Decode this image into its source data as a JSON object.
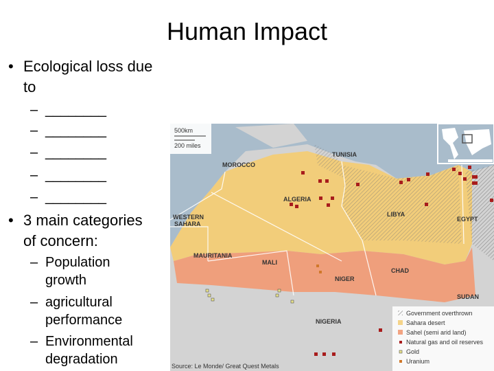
{
  "slide": {
    "title": "Human Impact",
    "bullets": [
      {
        "text_lines": [
          "Ecological loss due",
          "to"
        ],
        "sub": [
          "________",
          "________",
          "________",
          "________",
          "________"
        ]
      },
      {
        "text_lines": [
          "3 main categories",
          "of concern:"
        ],
        "sub": [
          [
            "Population",
            "growth"
          ],
          [
            "agricultural",
            "performance"
          ],
          [
            "Environmental",
            "degradation"
          ]
        ]
      }
    ]
  },
  "map": {
    "scale": {
      "km": "500km",
      "miles": "200 miles"
    },
    "countries": [
      "MOROCCO",
      "TUNISIA",
      "ALGERIA",
      "LIBYA",
      "EGYPT",
      "WESTERN",
      "SAHARA",
      "MAURITANIA",
      "MALI",
      "NIGER",
      "CHAD",
      "SUDAN",
      "NIGERIA"
    ],
    "legend": [
      {
        "label": "Government overthrown",
        "icon": "hatch"
      },
      {
        "label": "Sahara desert",
        "color": "#f5d48a"
      },
      {
        "label": "Sahel (semi arid land)",
        "color": "#f2a482"
      },
      {
        "label": "Natural gas and oil reserves",
        "color": "#a81c1c"
      },
      {
        "label": "Gold",
        "color": "#e8e28a"
      },
      {
        "label": "Uranium",
        "color": "#d0782a"
      }
    ],
    "source": "Source: Le Monde/ Great Quest Metals",
    "colors": {
      "sea": "#a9bccb",
      "land": "#d3d3d3",
      "sahara": "#f2cd7a",
      "sahel": "#ef9f7c"
    }
  }
}
